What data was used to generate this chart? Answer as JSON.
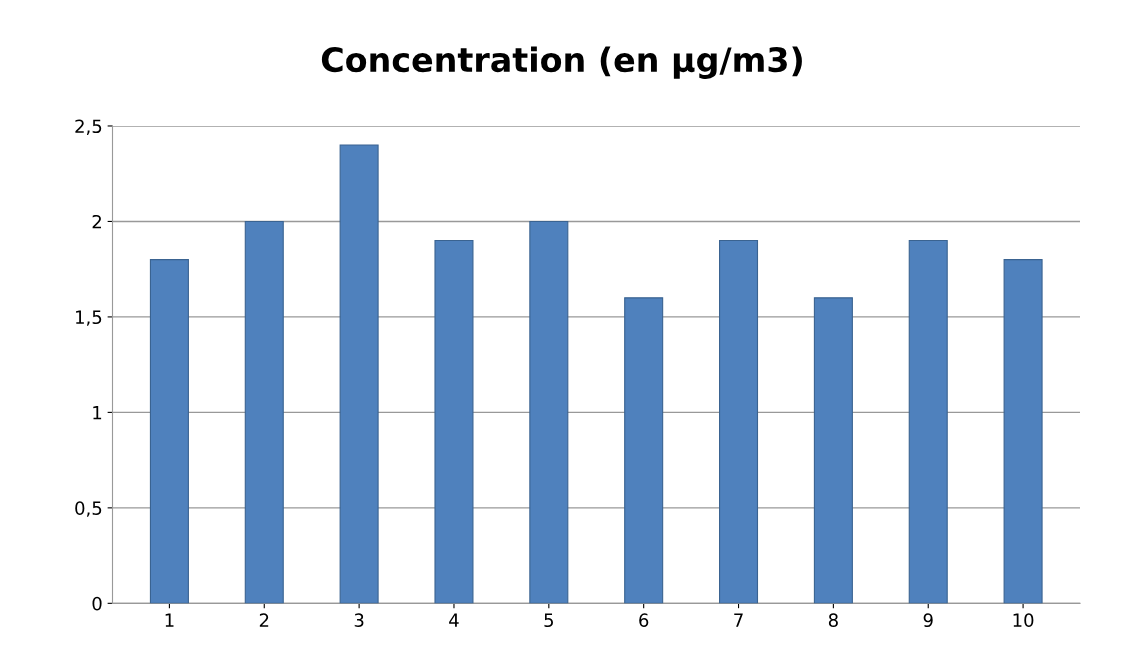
{
  "chart_data": {
    "type": "bar",
    "title": "Concentration (en µg/m3)",
    "categories": [
      "1",
      "2",
      "3",
      "4",
      "5",
      "6",
      "7",
      "8",
      "9",
      "10"
    ],
    "values": [
      1.8,
      2.0,
      2.4,
      1.9,
      2.0,
      1.6,
      1.9,
      1.6,
      1.9,
      1.8
    ],
    "color": "#4f81bd",
    "ylim": [
      0,
      2.5
    ],
    "yticks": [
      0,
      {
        "value": 0.5,
        "label": "0,5"
      },
      1,
      {
        "value": 1.5,
        "label": "1,5"
      },
      2,
      {
        "value": 2.5,
        "label": "2,5"
      }
    ],
    "grid": "y",
    "legend": false
  }
}
